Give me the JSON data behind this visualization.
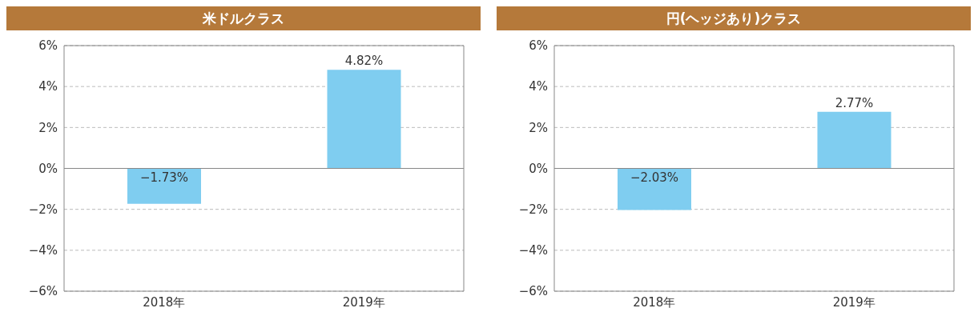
{
  "chart_data": [
    {
      "type": "bar",
      "title": "米ドルクラス",
      "categories": [
        "2018年",
        "2019年"
      ],
      "values": [
        -1.73,
        4.82
      ],
      "value_labels": [
        "−1.73%",
        "4.82%"
      ],
      "color": "#7fcdf0",
      "ylim": [
        -6,
        6
      ],
      "yticks": [
        {
          "value": -6,
          "label": "−6%"
        },
        {
          "value": -4,
          "label": "−4%"
        },
        {
          "value": -2,
          "label": "−2%"
        },
        {
          "value": 0,
          "label": "0%"
        },
        {
          "value": 2,
          "label": "2%"
        },
        {
          "value": 4,
          "label": "4%"
        },
        {
          "value": 6,
          "label": "6%"
        }
      ],
      "grid": "y",
      "legend": false
    },
    {
      "type": "bar",
      "title": "円(ヘッジあり)クラス",
      "categories": [
        "2018年",
        "2019年"
      ],
      "values": [
        -2.03,
        2.77
      ],
      "value_labels": [
        "−2.03%",
        "2.77%"
      ],
      "color": "#7fcdf0",
      "ylim": [
        -6,
        6
      ],
      "yticks": [
        {
          "value": -6,
          "label": "−6%"
        },
        {
          "value": -4,
          "label": "−4%"
        },
        {
          "value": -2,
          "label": "−2%"
        },
        {
          "value": 0,
          "label": "0%"
        },
        {
          "value": 2,
          "label": "2%"
        },
        {
          "value": 4,
          "label": "4%"
        },
        {
          "value": 6,
          "label": "6%"
        }
      ],
      "grid": "y",
      "legend": false
    }
  ]
}
